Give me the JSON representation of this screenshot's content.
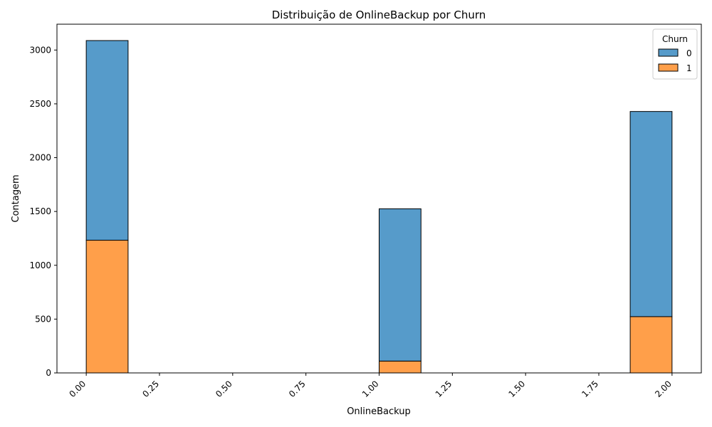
{
  "chart_data": {
    "type": "bar",
    "title": "Distribuição de OnlineBackup por Churn",
    "xlabel": "OnlineBackup",
    "ylabel": "Contagem",
    "xlim": [
      -0.1,
      2.1
    ],
    "ylim": [
      0,
      3240
    ],
    "x_ticks": [
      "0.00",
      "0.25",
      "0.50",
      "0.75",
      "1.00",
      "1.25",
      "1.50",
      "1.75",
      "2.00"
    ],
    "y_ticks": [
      "0",
      "500",
      "1000",
      "1500",
      "2000",
      "2500",
      "3000"
    ],
    "bin_width": 0.142857,
    "bins_left": [
      0.0,
      0.142857,
      0.285714,
      0.428571,
      0.571429,
      0.714286,
      0.857143,
      1.0,
      1.142857,
      1.285714,
      1.428571,
      1.571429,
      1.714286,
      1.857143
    ],
    "stacked": true,
    "legend": {
      "title": "Churn",
      "position": "top-right"
    },
    "series": [
      {
        "name": "1",
        "color": "#ff9f4a",
        "values": [
          1233,
          0,
          0,
          0,
          0,
          0,
          0,
          110,
          0,
          0,
          0,
          0,
          0,
          523
        ]
      },
      {
        "name": "0",
        "color": "#569bca",
        "values": [
          1855,
          0,
          0,
          0,
          0,
          0,
          0,
          1415,
          0,
          0,
          0,
          0,
          0,
          1906
        ]
      }
    ]
  }
}
